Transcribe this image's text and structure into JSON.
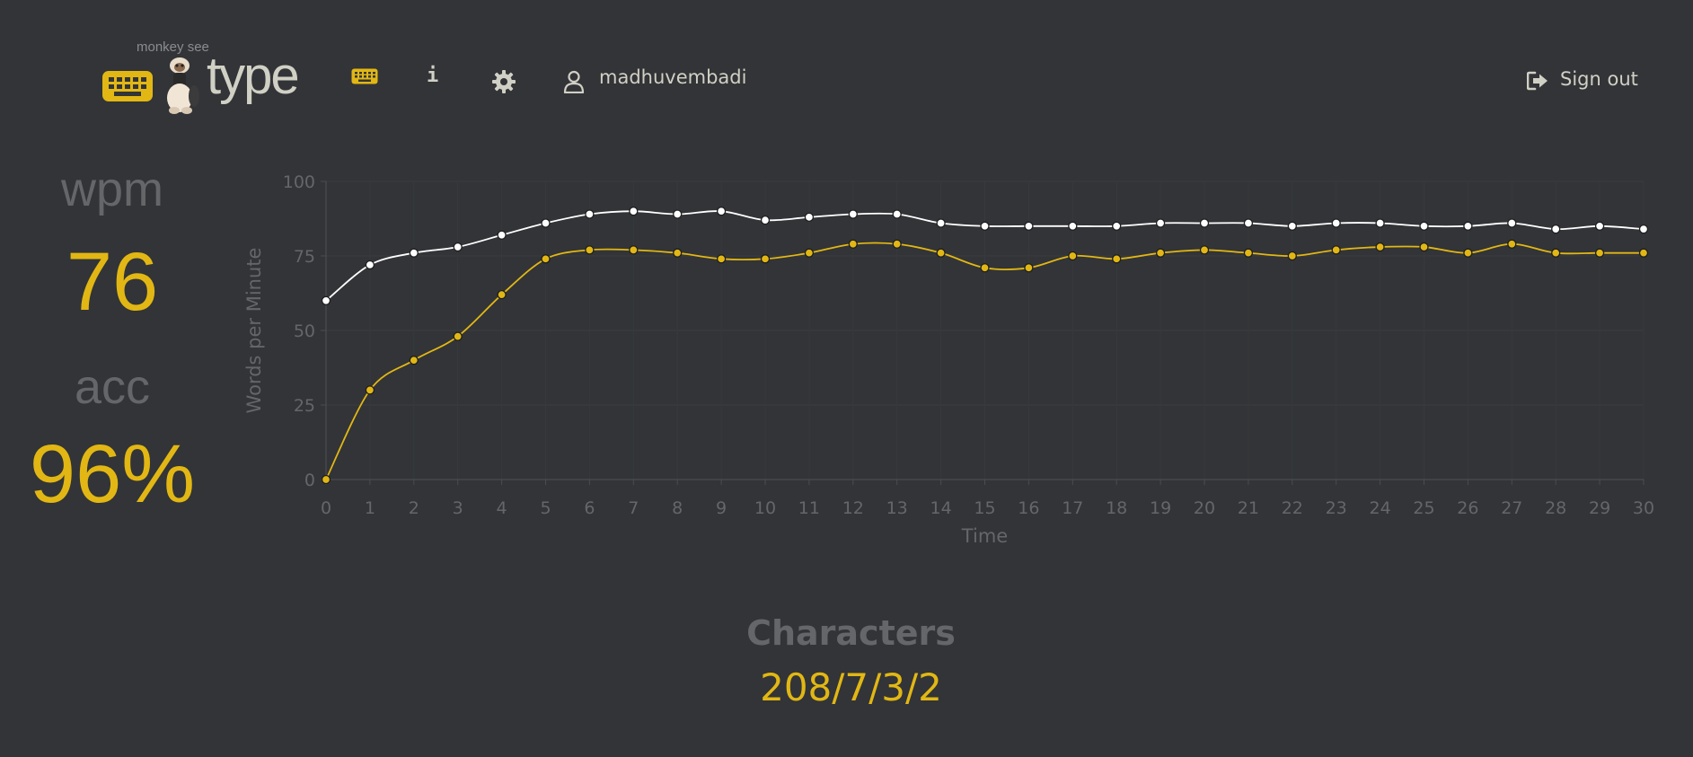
{
  "header": {
    "logo_subtitle": "monkey see",
    "logo_text": "type",
    "nav": {
      "keyboard_icon": "keyboard-icon",
      "info_icon": "info-icon",
      "info_glyph": "i",
      "settings_icon": "gear-icon",
      "account_icon": "user-icon",
      "account_name": "madhuvembadi"
    },
    "sign_out_label": "Sign out",
    "sign_out_icon": "sign-out-icon"
  },
  "stats": {
    "wpm_label": "wpm",
    "wpm_value": "76",
    "acc_label": "acc",
    "acc_value": "96%"
  },
  "characters": {
    "label": "Characters",
    "value": "208/7/3/2"
  },
  "colors": {
    "background": "#323437",
    "accent": "#e2b714",
    "text": "#d1d0c5",
    "sub": "#646669",
    "raw_line": "#ffffff"
  },
  "chart_data": {
    "type": "line",
    "xlabel": "Time",
    "ylabel": "Words per Minute",
    "ylim": [
      0,
      100
    ],
    "xlim": [
      0,
      30
    ],
    "yticks": [
      0,
      25,
      50,
      75,
      100
    ],
    "grid": true,
    "legend": "none",
    "x": [
      0,
      1,
      2,
      3,
      4,
      5,
      6,
      7,
      8,
      9,
      10,
      11,
      12,
      13,
      14,
      15,
      16,
      17,
      18,
      19,
      20,
      21,
      22,
      23,
      24,
      25,
      26,
      27,
      28,
      29,
      30
    ],
    "series": [
      {
        "color": "#ffffff",
        "values": [
          60,
          72,
          76,
          78,
          82,
          86,
          89,
          90,
          89,
          90,
          87,
          88,
          89,
          89,
          86,
          85,
          85,
          85,
          85,
          86,
          86,
          86,
          85,
          86,
          86,
          85,
          85,
          86,
          84,
          85,
          84
        ]
      },
      {
        "color": "#e2b714",
        "values": [
          0,
          30,
          40,
          48,
          62,
          74,
          77,
          77,
          76,
          74,
          74,
          76,
          79,
          79,
          76,
          71,
          71,
          75,
          74,
          76,
          77,
          76,
          75,
          77,
          78,
          78,
          76,
          79,
          76,
          76,
          76
        ]
      }
    ]
  }
}
